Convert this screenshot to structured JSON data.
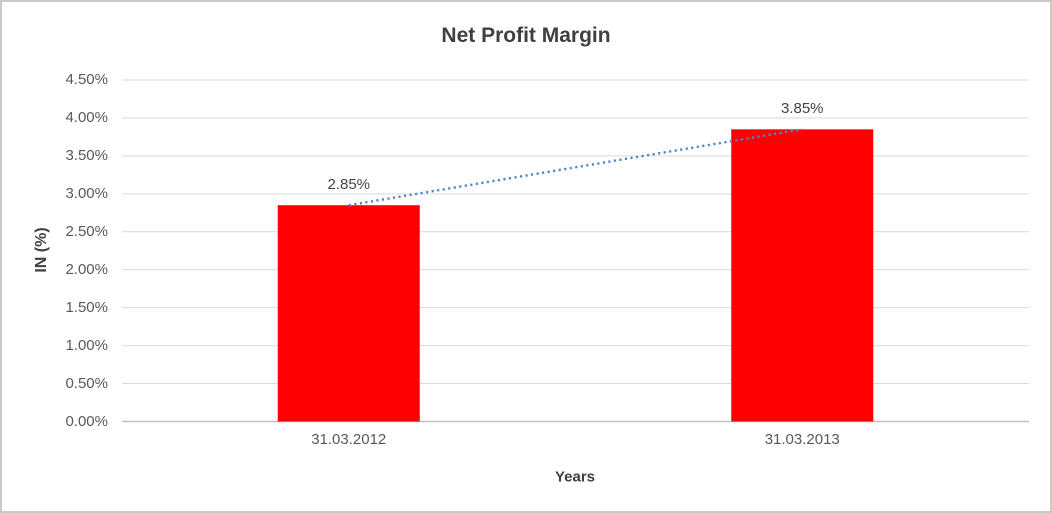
{
  "chart_data": {
    "type": "bar",
    "title": "Net Profit Margin",
    "xlabel": "Years",
    "ylabel": "IN (%)",
    "categories": [
      "31.03.2012",
      "31.03.2013"
    ],
    "values": [
      2.85,
      3.85
    ],
    "value_labels": [
      "2.85%",
      "3.85%"
    ],
    "yticks": [
      "0.00%",
      "0.50%",
      "1.00%",
      "1.50%",
      "2.00%",
      "2.50%",
      "3.00%",
      "3.50%",
      "4.00%",
      "4.50%"
    ],
    "ytick_values": [
      0,
      0.5,
      1.0,
      1.5,
      2.0,
      2.5,
      3.0,
      3.5,
      4.0,
      4.5
    ],
    "ylim": [
      0,
      4.5
    ],
    "grid": "horizontal",
    "legend": "none",
    "trendline": {
      "present": true,
      "style": "dotted",
      "from_value": 2.85,
      "to_value": 3.85
    },
    "colors": {
      "bar": "#FF0000",
      "trendline": "#4E87C8",
      "gridline": "#D9D9D9",
      "axis_line": "#BFBFBF",
      "title_text": "#404040",
      "tick_text": "#595959",
      "border": "#C9C9C9",
      "background": "#FFFFFF"
    }
  }
}
